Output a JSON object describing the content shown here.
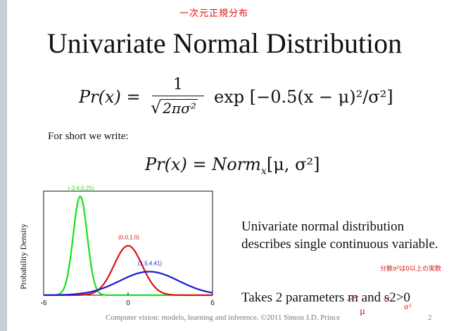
{
  "annotations": {
    "top_note": "一次元正規分布",
    "variance_note": "分散σ²は0以上の実数",
    "mu_note": "μ",
    "sigma_note": "σ²"
  },
  "slide": {
    "title": "Univariate Normal Distribution",
    "short_text": "For short we write:",
    "description": "Univariate normal distribution describes single continuous variable.",
    "params_prefix": "Takes 2 parameters ",
    "params_m": "m",
    "params_and": " and ",
    "params_s": "s",
    "params_suffix": "2>0",
    "footer": "Computer vision: models, learning and inference.  ©2011 Simon J.D. Prince",
    "page_number": "2"
  },
  "equations": {
    "eq1_lhs": "Pr(x) =",
    "eq1_num": "1",
    "eq1_den": "2πσ²",
    "eq1_rhs": "exp [−0.5(x − μ)²/σ²]",
    "eq2": "Pr(x) = Norm",
    "eq2_sub": "x",
    "eq2_args": "[μ, σ²]"
  },
  "chart_data": {
    "type": "line",
    "ylabel": "Probability Density",
    "xlim": [
      -6,
      6
    ],
    "xticks": [
      "-6",
      "0",
      "6"
    ],
    "grid": false,
    "series": [
      {
        "label": "(-3.4,0.25)",
        "mean": -3.4,
        "variance": 0.25,
        "color": "#18e018"
      },
      {
        "label": "(0.0,1.0)",
        "mean": 0.0,
        "variance": 1.0,
        "color": "#e01010"
      },
      {
        "label": "(1.5,4.41)",
        "mean": 1.5,
        "variance": 4.41,
        "color": "#1818d8"
      }
    ]
  }
}
